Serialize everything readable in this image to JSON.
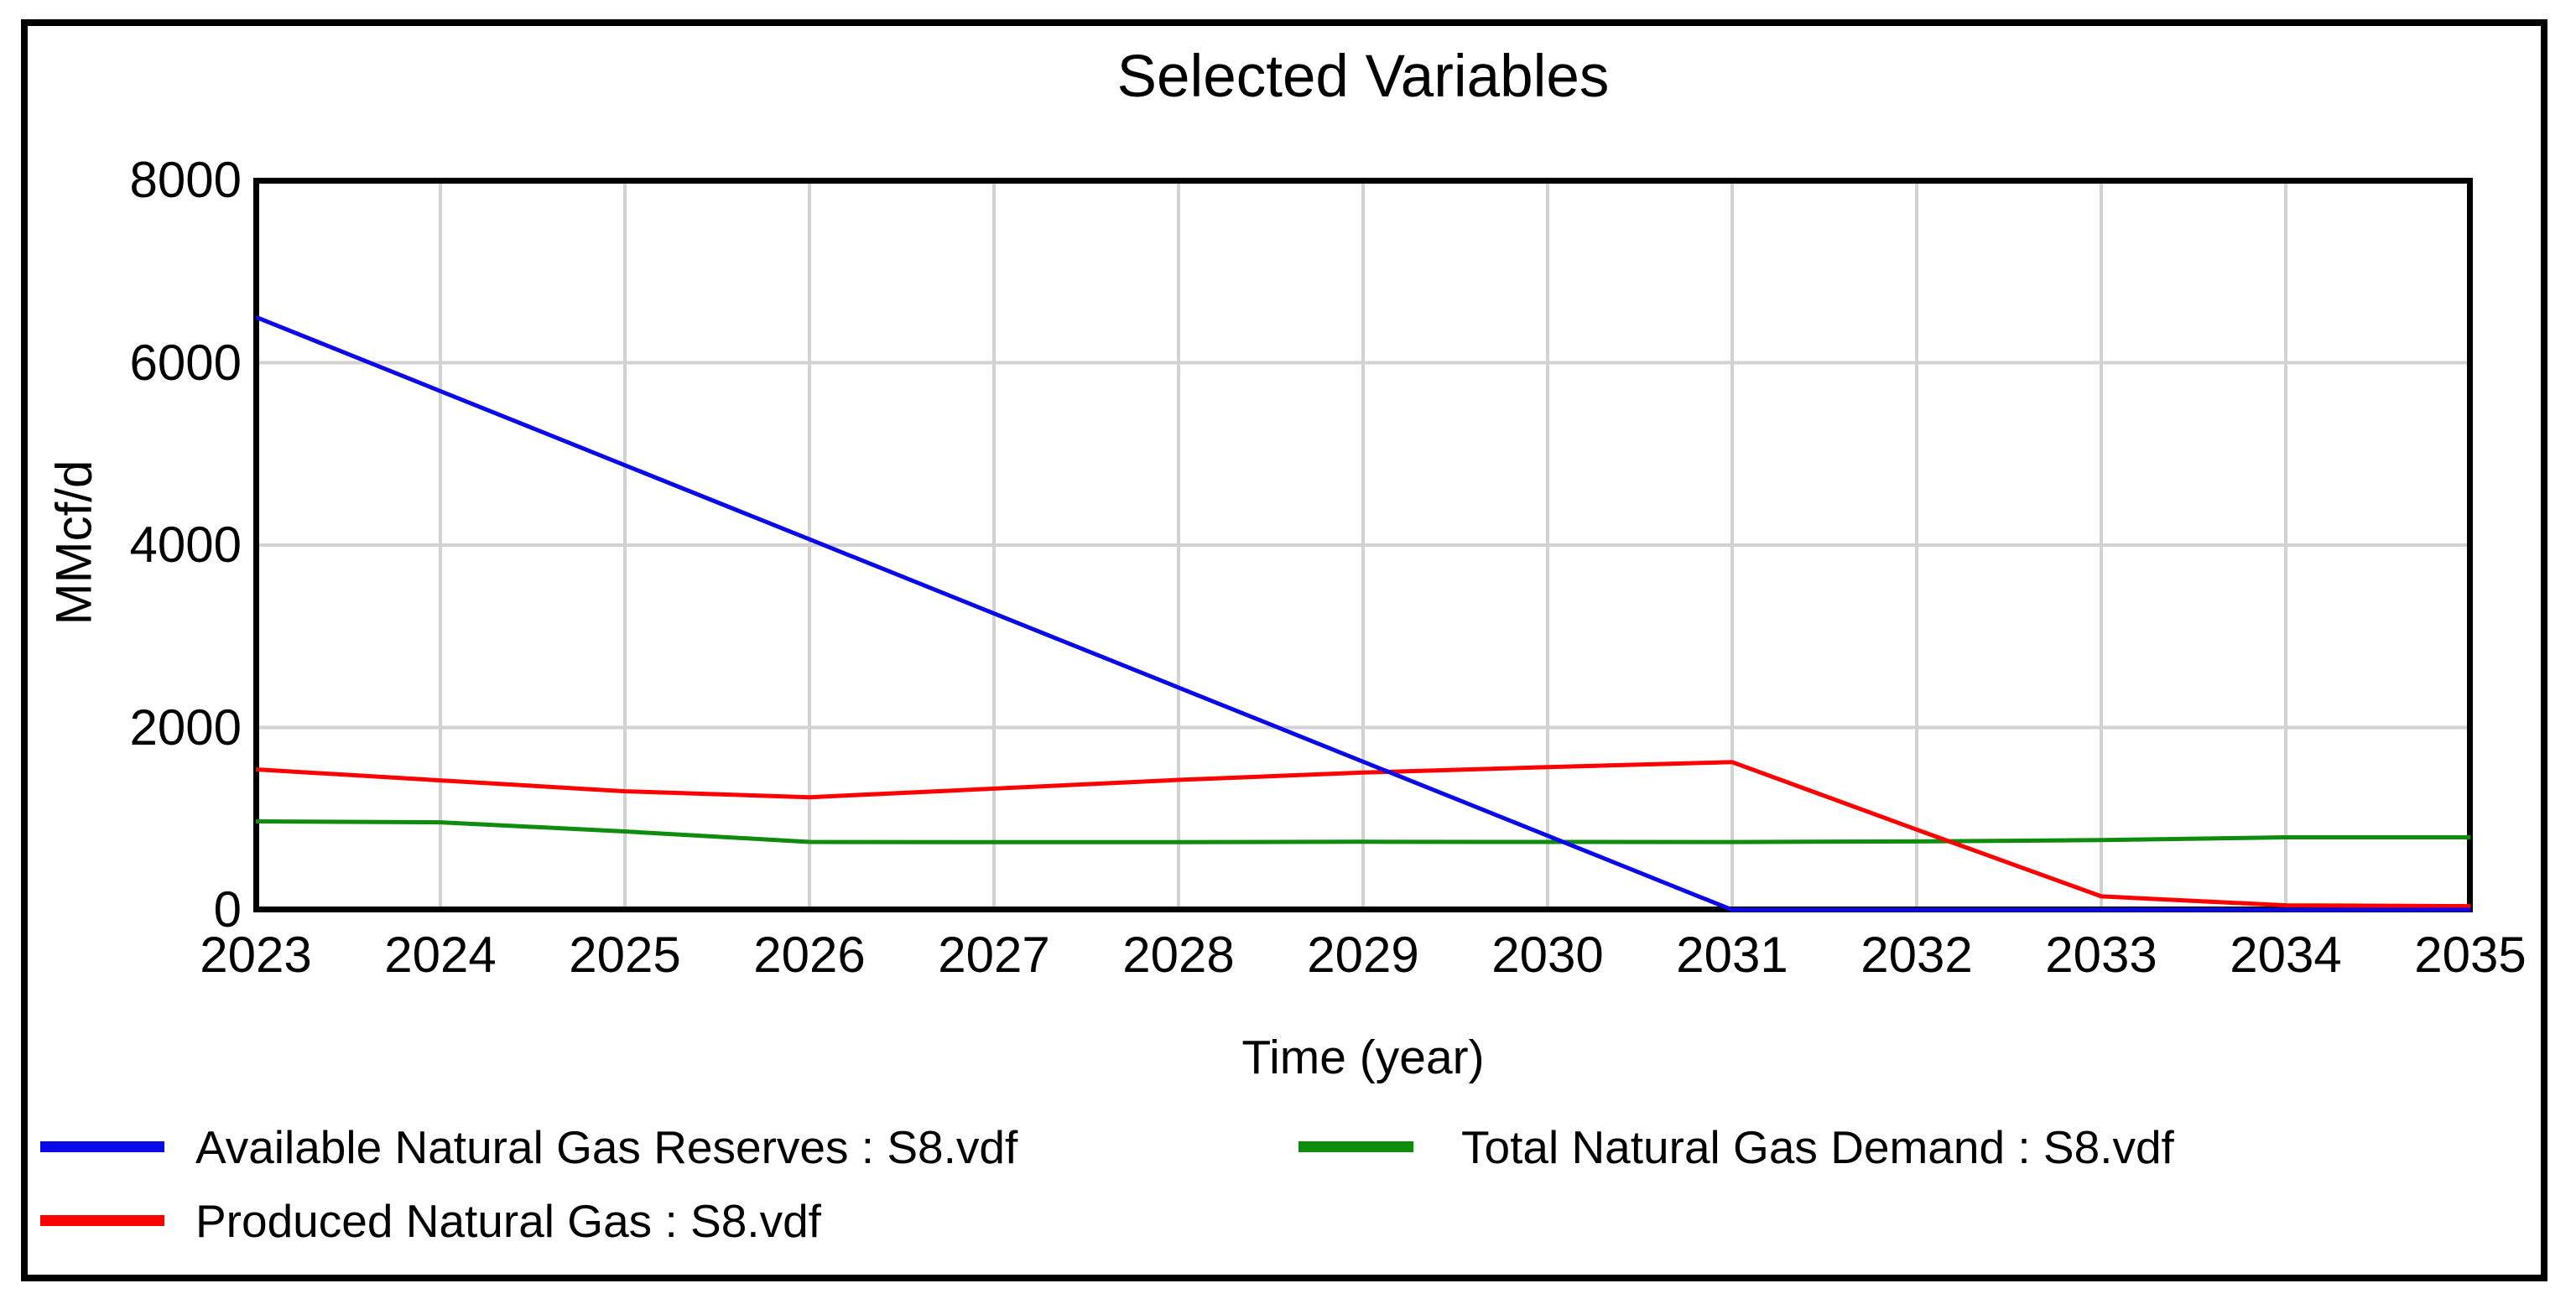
{
  "chart_data": {
    "type": "line",
    "title": "Selected Variables",
    "xlabel": "Time (year)",
    "ylabel": "MMcf/d",
    "xlim": [
      2023,
      2035
    ],
    "ylim": [
      0,
      8000
    ],
    "x": [
      2023,
      2024,
      2025,
      2026,
      2027,
      2028,
      2029,
      2030,
      2031,
      2032,
      2033,
      2034,
      2035
    ],
    "x_tick_labels": [
      "2023",
      "2024",
      "2025",
      "2026",
      "2027",
      "2028",
      "2029",
      "2030",
      "2031",
      "2032",
      "2033",
      "2034",
      "2035"
    ],
    "y_ticks": [
      0,
      2000,
      4000,
      6000,
      8000
    ],
    "y_tick_labels": [
      "0",
      "2000",
      "4000",
      "6000",
      "8000"
    ],
    "grid": true,
    "grid_color": "#d2d2d2",
    "frame_color": "#000000",
    "background_color": "#ffffff",
    "legend_position": "bottom",
    "series": [
      {
        "name": "Available Natural Gas Reserves : S8.vdf",
        "color": "#0a0ae8",
        "values": [
          6500,
          5688,
          4875,
          4063,
          3250,
          2438,
          1625,
          813,
          0,
          0,
          0,
          0,
          0
        ]
      },
      {
        "name": "Produced Natural Gas : S8.vdf",
        "color": "#fe0000",
        "values": [
          1540,
          1420,
          1300,
          1235,
          1330,
          1425,
          1505,
          1565,
          1620,
          880,
          148,
          50,
          40
        ]
      },
      {
        "name": "Total Natural Gas Demand : S8.vdf",
        "color": "#0d8c0d",
        "values": [
          970,
          960,
          860,
          745,
          742,
          743,
          747,
          745,
          744,
          750,
          765,
          795,
          795
        ]
      }
    ],
    "draw_order": [
      2,
      1,
      0
    ]
  }
}
